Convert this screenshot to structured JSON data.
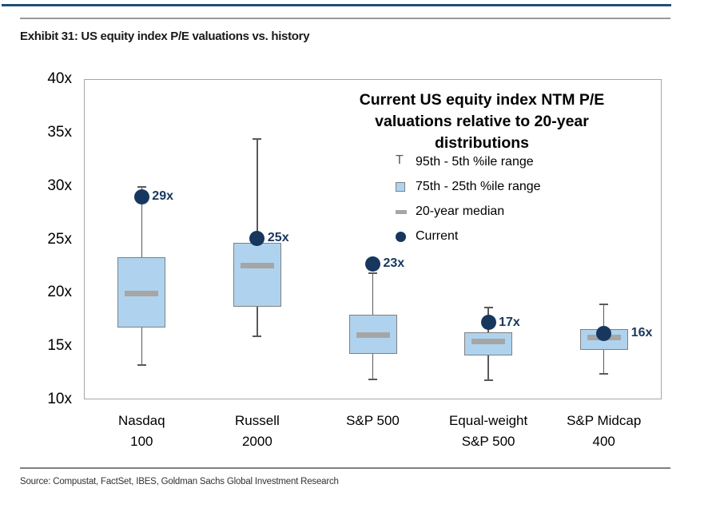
{
  "page": {
    "exhibit_title": "Exhibit 31: US equity index P/E valuations vs. history",
    "source_line": "Source: Compustat, FactSet, IBES, Goldman Sachs Global Investment Research"
  },
  "colors": {
    "accent_navy": "#1F4E79",
    "current_dot_navy": "#17375E",
    "value_label_navy": "#17375E",
    "box_fill_blue": "#AFD3EE",
    "box_border_gray": "#808080",
    "median_gray": "#A6A6A6",
    "whisker_gray": "#595959",
    "plot_border_gray": "#A6A6A6"
  },
  "chart_data": {
    "type": "boxplot",
    "title_lines": [
      "Current US equity index NTM P/E",
      "valuations relative to 20-year",
      "distributions"
    ],
    "legend": [
      {
        "marker": "whisker-range-icon",
        "label": "95th - 5th %ile range"
      },
      {
        "marker": "box-range-icon",
        "label": "75th - 25th %ile range"
      },
      {
        "marker": "median-dash-icon",
        "label": "20-year median"
      },
      {
        "marker": "current-dot-icon",
        "label": "Current"
      }
    ],
    "y_axis": {
      "unit_suffix": "x",
      "min": 10,
      "max": 40,
      "tick_step": 5,
      "tick_labels": [
        "40x",
        "35x",
        "30x",
        "25x",
        "20x",
        "15x",
        "10x"
      ]
    },
    "categories": [
      [
        "Nasdaq",
        "100"
      ],
      [
        "Russell",
        "2000"
      ],
      [
        "S&P 500"
      ],
      [
        "Equal-weight",
        "S&P 500"
      ],
      [
        "S&P Midcap",
        "400"
      ]
    ],
    "series": [
      {
        "name": "Nasdaq 100",
        "p95": 29.9,
        "p75": 23.3,
        "median": 19.9,
        "p25": 16.7,
        "p5": 13.2,
        "current": 29.0,
        "current_label": "29x"
      },
      {
        "name": "Russell 2000",
        "p95": 34.4,
        "p75": 24.7,
        "median": 22.5,
        "p25": 18.7,
        "p5": 15.9,
        "current": 25.1,
        "current_label": "25x"
      },
      {
        "name": "S&P 500",
        "p95": 21.8,
        "p75": 17.9,
        "median": 16.0,
        "p25": 14.3,
        "p5": 11.9,
        "current": 22.7,
        "current_label": "23x"
      },
      {
        "name": "Equal-weight S&P 500",
        "p95": 18.6,
        "p75": 16.3,
        "median": 15.4,
        "p25": 14.1,
        "p5": 11.8,
        "current": 17.2,
        "current_label": "17x"
      },
      {
        "name": "S&P Midcap 400",
        "p95": 18.9,
        "p75": 16.6,
        "median": 15.8,
        "p25": 14.6,
        "p5": 12.4,
        "current": 16.2,
        "current_label": "16x"
      }
    ]
  }
}
